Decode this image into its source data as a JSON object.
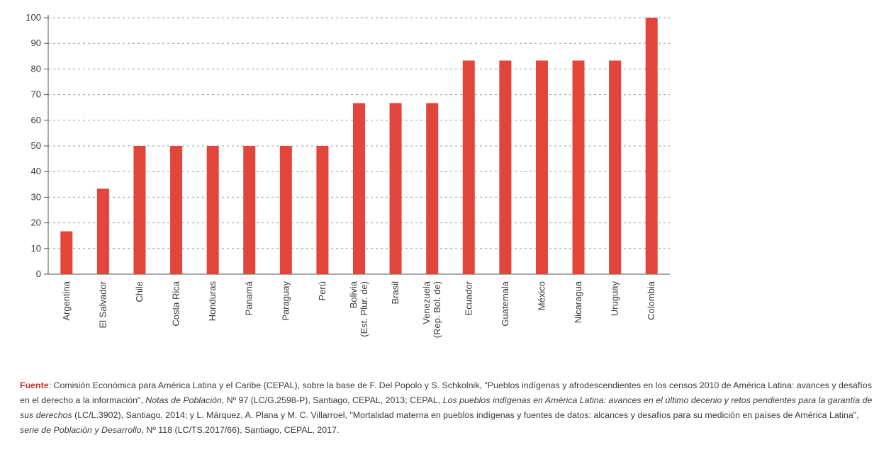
{
  "chart_data": {
    "type": "bar",
    "categories": [
      [
        "Argentina"
      ],
      [
        "El Salvador"
      ],
      [
        "Chile"
      ],
      [
        "Costa Rica"
      ],
      [
        "Honduras"
      ],
      [
        "Panamá"
      ],
      [
        "Paraguay"
      ],
      [
        "Perú"
      ],
      [
        "Bolivia",
        "(Est. Plur. de)"
      ],
      [
        "Brasil"
      ],
      [
        "Venezuela",
        "(Rep. Bol. de)"
      ],
      [
        "Ecuador"
      ],
      [
        "Guatemala"
      ],
      [
        "México"
      ],
      [
        "Nicaragua"
      ],
      [
        "Uruguay"
      ],
      [
        "Colombia"
      ]
    ],
    "values": [
      16.7,
      33.3,
      50,
      50,
      50,
      50,
      50,
      50,
      66.7,
      66.7,
      66.7,
      83.3,
      83.3,
      83.3,
      83.3,
      83.3,
      100
    ],
    "yticks": [
      "0",
      "10",
      "20",
      "30",
      "40",
      "50",
      "60",
      "70",
      "80",
      "90",
      "100"
    ],
    "ylim": [
      0,
      100
    ],
    "grid": true,
    "bar_color": "#e2463a",
    "grid_color": "#9a9a9a",
    "title": "",
    "xlabel": "",
    "ylabel": ""
  },
  "source": {
    "label": "Fuente",
    "parts": [
      {
        "text": ": Comisión Económica para América Latina y el Caribe (CEPAL), sobre la base de F. Del Popolo y S. Schkolnik, \"Pueblos indígenas y afrodescendientes en los censos 2010 de América Latina: avances y desafíos en el derecho a la información\", ",
        "italic": false
      },
      {
        "text": "Notas de Población",
        "italic": true
      },
      {
        "text": ", Nº 97 (LC/G.2598-P), Santiago, CEPAL, 2013; CEPAL, ",
        "italic": false
      },
      {
        "text": "Los pueblos indígenas en América Latina: avances en el último decenio y retos pendientes para la garantía de sus derechos",
        "italic": true
      },
      {
        "text": " (LC/L.3902), Santiago, 2014; y L. Márquez, A. Plana y M. C. Villarroel, \"Mortalidad materna en pueblos indígenas y fuentes de datos: alcances y desafíos para su medición en países de América Latina\", ",
        "italic": false
      },
      {
        "text": "serie de Población y Desarrollo",
        "italic": true
      },
      {
        "text": ", Nº 118 (LC/TS.2017/66), Santiago, CEPAL, 2017.",
        "italic": false
      }
    ]
  }
}
